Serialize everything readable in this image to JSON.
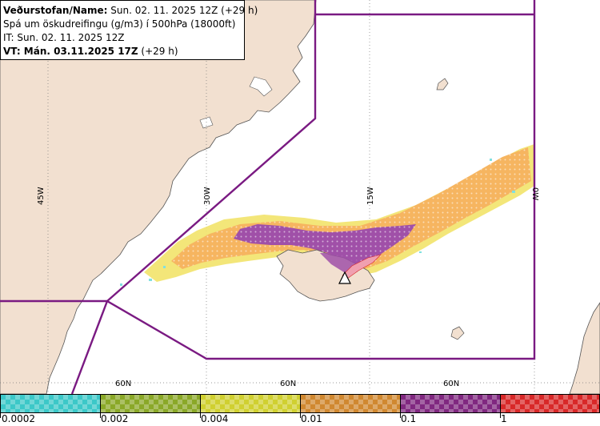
{
  "info": {
    "line1_label": "Veðurstofan/Name:",
    "line1_value": " Sun. 02. 11. 2025 12Z (+29 h)",
    "line2": "Spá um öskudreifingu (g/m3) í 500hPa (18000ft)",
    "line3": "IT: Sun. 02. 11. 2025 12Z",
    "line4_label": "VT: Mán. 03.11.2025 17Z",
    "line4_value": " (+29 h)"
  },
  "grid": {
    "lon_labels": [
      "45W",
      "30W",
      "15W",
      "0W"
    ],
    "lat_labels": [
      "60N",
      "60N",
      "60N"
    ]
  },
  "legend": {
    "ticks": [
      "0.0002",
      "0.002",
      "0.004",
      "0.01",
      "0.1",
      "1"
    ],
    "colors": [
      "#3cc8c8",
      "#8aa828",
      "#d0d030",
      "#d08830",
      "#802880",
      "#d82828"
    ]
  },
  "colors": {
    "land": "#f2e0d0",
    "boundary": "#7a1a82",
    "ash_light": "#f2e36a",
    "ash_orange": "#f6b560",
    "ash_purple": "#a050a8",
    "ash_cyan": "#80e0e0"
  }
}
